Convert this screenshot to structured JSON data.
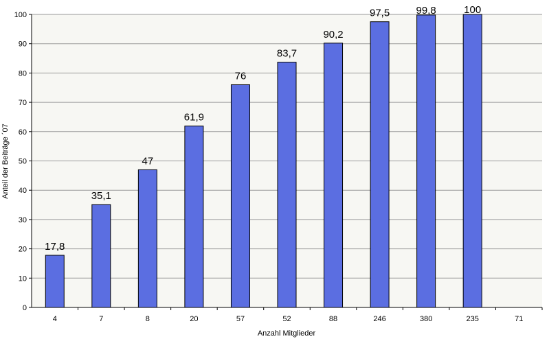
{
  "chart_data": {
    "type": "bar",
    "categories": [
      "4",
      "7",
      "8",
      "20",
      "57",
      "52",
      "88",
      "246",
      "380",
      "235",
      "71"
    ],
    "values": [
      17.8,
      35.1,
      47,
      61.9,
      76,
      83.7,
      90.2,
      97.5,
      99.8,
      100,
      null
    ],
    "value_labels": [
      "17,8",
      "35,1",
      "47",
      "61,9",
      "76",
      "83,7",
      "90,2",
      "97,5",
      "99,8",
      "100",
      ""
    ],
    "xlabel": "Anzahl Mitglieder",
    "ylabel": "Anteil der Beiträge ´07",
    "ylim": [
      0,
      100
    ],
    "yticks": [
      "0",
      "10",
      "20",
      "30",
      "40",
      "50",
      "60",
      "70",
      "80",
      "90",
      "100"
    ],
    "grid": true,
    "legend": "none",
    "colors": {
      "bar": "#5b6ee1",
      "bar_stroke": "#000000",
      "plot_bg": "#f7f7f3",
      "grid": "#9a9a9a"
    }
  }
}
